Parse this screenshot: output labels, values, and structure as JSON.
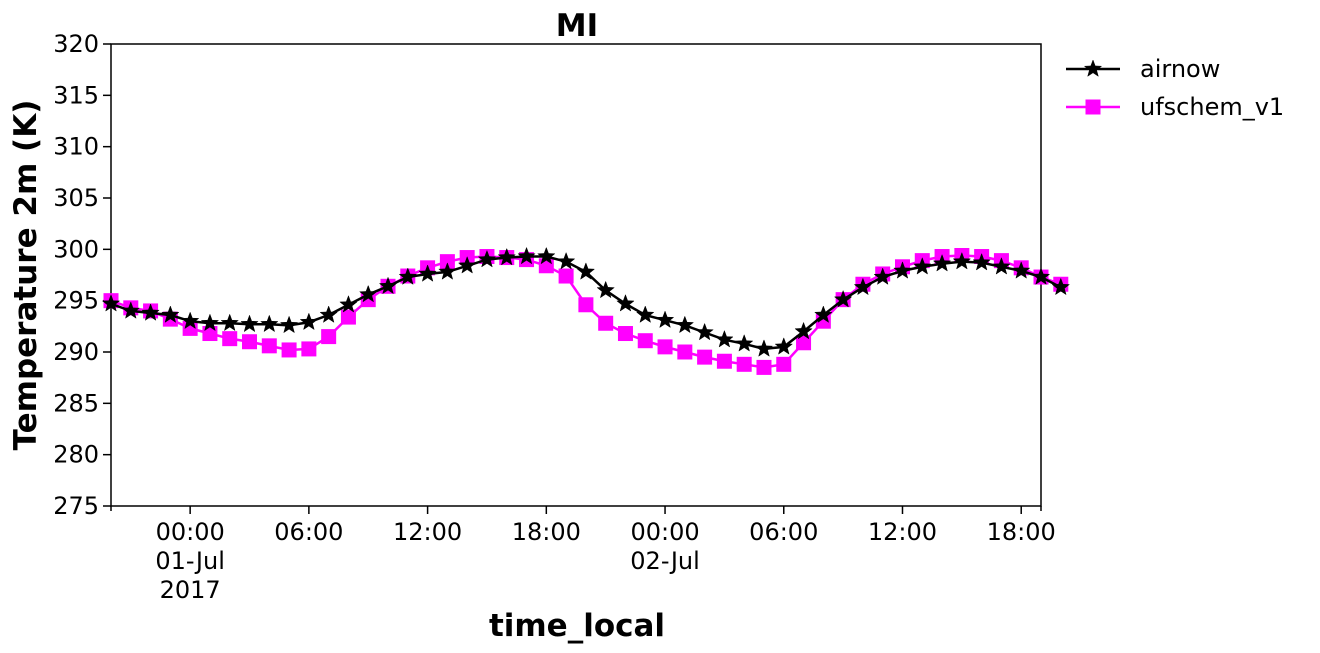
{
  "chart_data": {
    "type": "line",
    "title": "MI",
    "xlabel": "time_local",
    "ylabel": "Temperature 2m (K)",
    "ylim": [
      275,
      320
    ],
    "yticks": [
      275,
      280,
      285,
      290,
      295,
      300,
      305,
      310,
      315,
      320
    ],
    "xlim": [
      "2017-06-30 20:00",
      "2017-07-02 19:00"
    ],
    "xticks": [
      {
        "time": "2017-07-01 00:00",
        "lines": [
          "00:00",
          "01-Jul",
          "2017"
        ]
      },
      {
        "time": "2017-07-01 06:00",
        "lines": [
          "06:00"
        ]
      },
      {
        "time": "2017-07-01 12:00",
        "lines": [
          "12:00"
        ]
      },
      {
        "time": "2017-07-01 18:00",
        "lines": [
          "18:00"
        ]
      },
      {
        "time": "2017-07-02 00:00",
        "lines": [
          "00:00",
          "02-Jul"
        ]
      },
      {
        "time": "2017-07-02 06:00",
        "lines": [
          "06:00"
        ]
      },
      {
        "time": "2017-07-02 12:00",
        "lines": [
          "12:00"
        ]
      },
      {
        "time": "2017-07-02 18:00",
        "lines": [
          "18:00"
        ]
      }
    ],
    "x_start": "2017-06-30 20:00",
    "x_step_hours": 1,
    "legend_position": "outside-top-right",
    "series": [
      {
        "name": "airnow",
        "color": "#000000",
        "marker": "star",
        "values": [
          294.7,
          294.0,
          293.8,
          293.6,
          293.0,
          292.8,
          292.8,
          292.7,
          292.7,
          292.6,
          292.9,
          293.6,
          294.6,
          295.6,
          296.4,
          297.3,
          297.6,
          297.8,
          298.4,
          299.0,
          299.2,
          299.3,
          299.3,
          298.8,
          297.8,
          296.0,
          294.7,
          293.6,
          293.1,
          292.6,
          291.9,
          291.2,
          290.8,
          290.3,
          290.5,
          292.0,
          293.6,
          295.1,
          296.3,
          297.3,
          297.9,
          298.3,
          298.6,
          298.8,
          298.7,
          298.3,
          297.9,
          297.3,
          296.3
        ]
      },
      {
        "name": "ufschem_v1",
        "color": "#ff00ff",
        "marker": "square",
        "values": [
          295.0,
          294.3,
          294.0,
          293.2,
          292.3,
          291.8,
          291.3,
          291.0,
          290.6,
          290.2,
          290.3,
          291.5,
          293.4,
          295.1,
          296.4,
          297.4,
          298.2,
          298.8,
          299.2,
          299.3,
          299.2,
          299.0,
          298.4,
          297.4,
          294.6,
          292.8,
          291.8,
          291.1,
          290.5,
          290.0,
          289.5,
          289.1,
          288.8,
          288.5,
          288.8,
          290.9,
          293.0,
          295.1,
          296.6,
          297.6,
          298.3,
          298.9,
          299.3,
          299.4,
          299.3,
          298.9,
          298.2,
          297.3,
          296.6
        ]
      }
    ]
  }
}
